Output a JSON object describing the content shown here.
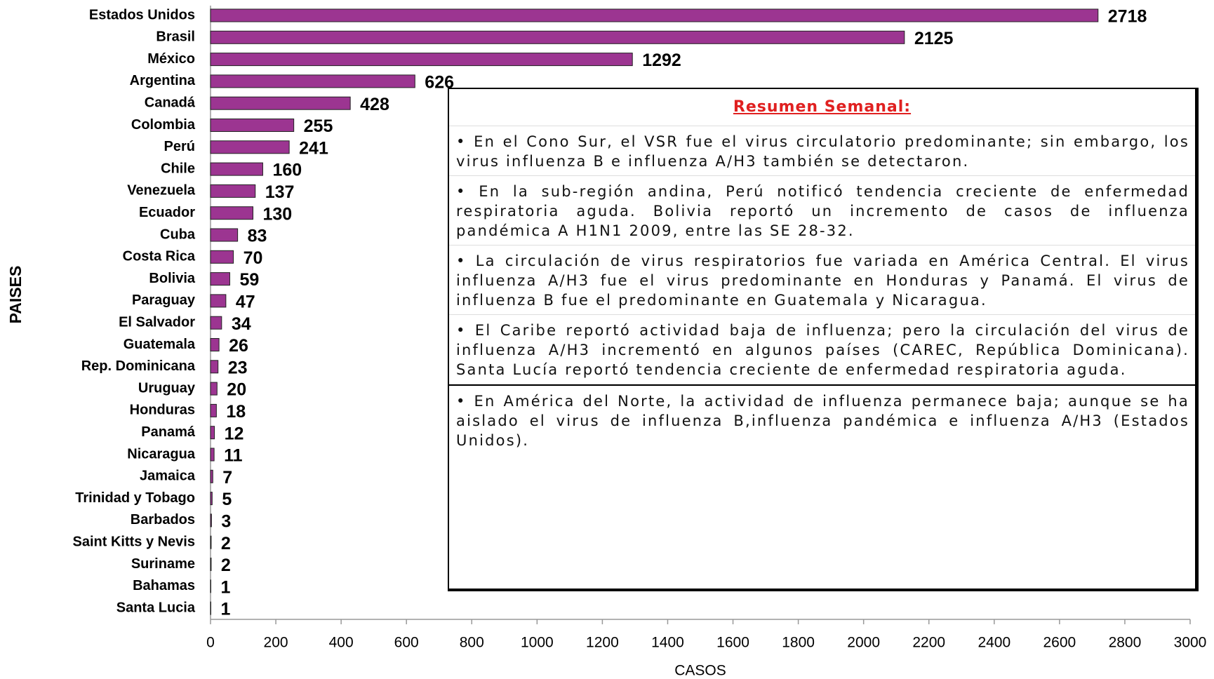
{
  "chart_data": {
    "type": "bar",
    "categories": [
      "Estados Unidos",
      "Brasil",
      "México",
      "Argentina",
      "Canadá",
      "Colombia",
      "Perú",
      "Chile",
      "Venezuela",
      "Ecuador",
      "Cuba",
      "Costa Rica",
      "Bolivia",
      "Paraguay",
      "El Salvador",
      "Guatemala",
      "Rep. Dominicana",
      "Uruguay",
      "Honduras",
      "Panamá",
      "Nicaragua",
      "Jamaica",
      "Trinidad y Tobago",
      "Barbados",
      "Saint Kitts y Nevis",
      "Suriname",
      "Bahamas",
      "Santa Lucia"
    ],
    "values": [
      2718,
      2125,
      1292,
      626,
      428,
      255,
      241,
      160,
      137,
      130,
      83,
      70,
      59,
      47,
      34,
      26,
      23,
      20,
      18,
      12,
      11,
      7,
      5,
      3,
      2,
      2,
      1,
      1
    ],
    "color": "#9c3591",
    "xlim": [
      0,
      3000
    ],
    "xticks": [
      0,
      200,
      400,
      600,
      800,
      1000,
      1200,
      1400,
      1600,
      1800,
      2000,
      2200,
      2400,
      2600,
      2800,
      3000
    ],
    "x_label": "CASOS",
    "y_label": "PAISES"
  },
  "summary": {
    "title": "Resumen Semanal:",
    "paragraphs": [
      "• En el Cono Sur, el VSR fue el virus circulatorio predominante; sin embargo, los virus influenza B e influenza A/H3 también se detectaron.",
      "• En la sub-región andina, Perú notificó tendencia creciente de enfermedad respiratoria aguda. Bolivia reportó un incremento de casos de influenza pandémica A H1N1 2009, entre las SE 28-32.",
      "• La circulación de virus respiratorios fue variada en América Central. El virus influenza A/H3 fue el virus predominante en Honduras y Panamá. El virus de influenza B fue el predominante en Guatemala y Nicaragua.",
      "• El Caribe reportó actividad baja de influenza; pero la circulación del virus de influenza A/H3 incrementó en algunos países (CAREC, República Dominicana). Santa Lucía reportó tendencia creciente de enfermedad respiratoria aguda.",
      "• En América del Norte, la actividad de influenza permanece baja; aunque se ha aislado el virus de influenza B,influenza pandémica e influenza A/H3 (Estados Unidos)."
    ]
  }
}
